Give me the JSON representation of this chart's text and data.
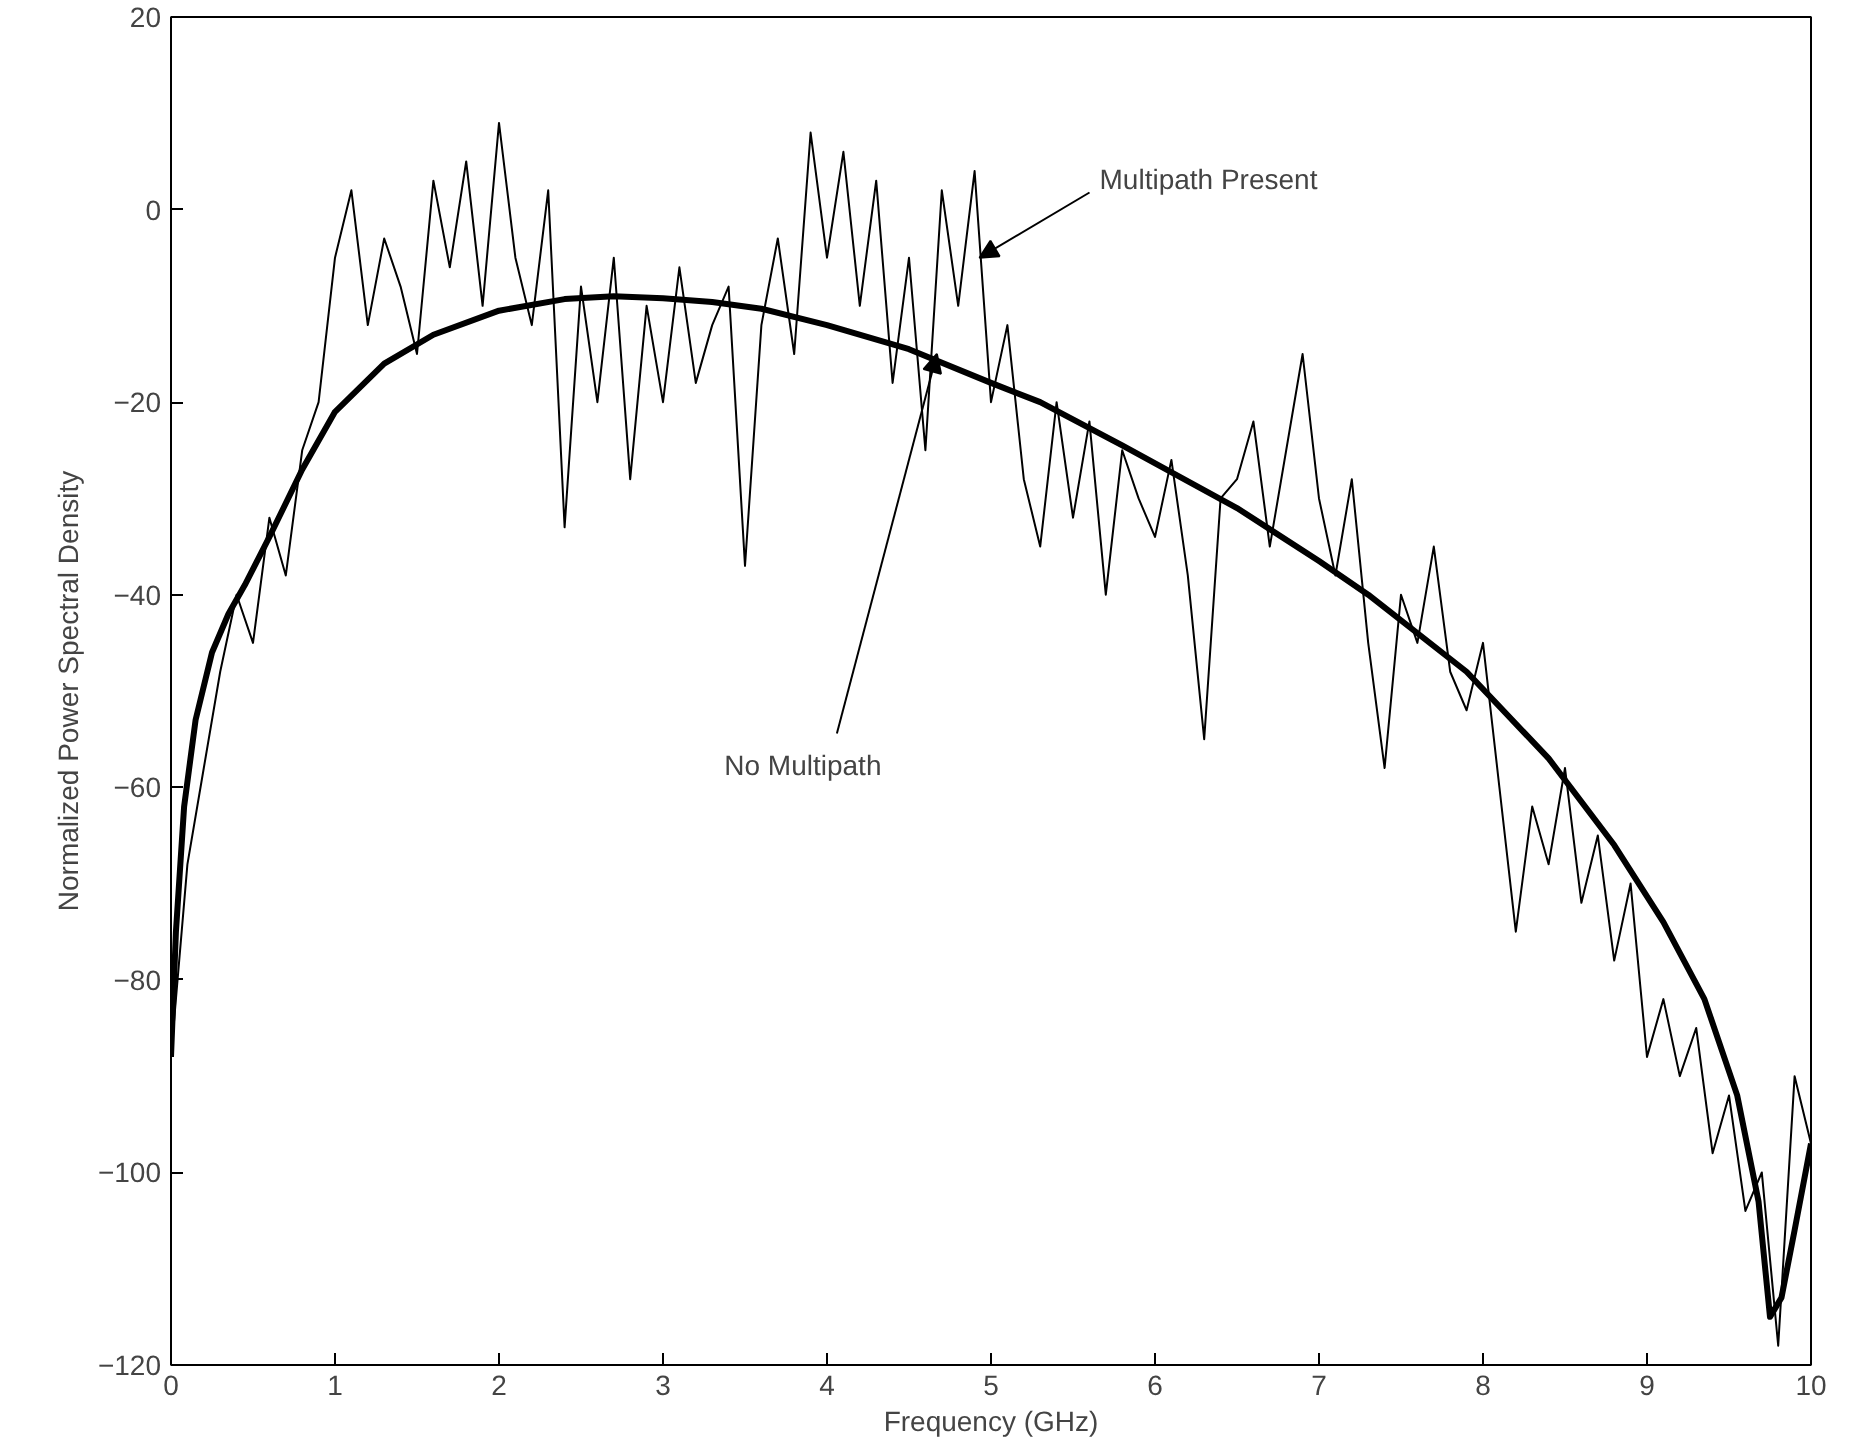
{
  "chart_data": {
    "type": "line",
    "xlabel": "Frequency (GHz)",
    "ylabel": "Normalized Power Spectral Density",
    "xlim": [
      0,
      10
    ],
    "ylim": [
      -120,
      20
    ],
    "xticks": [
      0,
      1,
      2,
      3,
      4,
      5,
      6,
      7,
      8,
      9,
      10
    ],
    "yticks": [
      -120,
      -100,
      -80,
      -60,
      -40,
      -20,
      0,
      20
    ],
    "series": [
      {
        "color": "#000000",
        "line_style": "solid",
        "x": [
          0,
          0.1,
          0.2,
          0.3,
          0.4,
          0.5,
          0.6,
          0.7,
          0.8,
          0.9,
          1.0,
          1.1,
          1.2,
          1.3,
          1.4,
          1.5,
          1.6,
          1.7,
          1.8,
          1.9,
          2.0,
          2.1,
          2.2,
          2.3,
          2.4,
          2.5,
          2.6,
          2.7,
          2.8,
          2.9,
          3.0,
          3.1,
          3.2,
          3.3,
          3.4,
          3.5,
          3.6,
          3.7,
          3.8,
          3.9,
          4.0,
          4.1,
          4.2,
          4.3,
          4.4,
          4.5,
          4.6,
          4.7,
          4.8,
          4.9,
          5.0,
          5.1,
          5.2,
          5.3,
          5.4,
          5.5,
          5.6,
          5.7,
          5.8,
          5.9,
          6.0,
          6.1,
          6.2,
          6.3,
          6.4,
          6.5,
          6.6,
          6.7,
          6.8,
          6.9,
          7.0,
          7.1,
          7.2,
          7.3,
          7.4,
          7.5,
          7.6,
          7.7,
          7.8,
          7.9,
          8.0,
          8.1,
          8.2,
          8.3,
          8.4,
          8.5,
          8.6,
          8.7,
          8.8,
          8.9,
          9.0,
          9.1,
          9.2,
          9.3,
          9.4,
          9.5,
          9.6,
          9.7,
          9.8,
          9.9,
          10.0
        ],
        "values": [
          -88,
          -68,
          -58,
          -48,
          -40,
          -45,
          -32,
          -38,
          -25,
          -20,
          -5,
          2,
          -12,
          -3,
          -8,
          -15,
          3,
          -6,
          5,
          -10,
          9,
          -5,
          -12,
          2,
          -33,
          -8,
          -20,
          -5,
          -28,
          -10,
          -20,
          -6,
          -18,
          -12,
          -8,
          -37,
          -12,
          -3,
          -15,
          8,
          -5,
          6,
          -10,
          3,
          -18,
          -5,
          -25,
          2,
          -10,
          4,
          -20,
          -12,
          -28,
          -35,
          -20,
          -32,
          -22,
          -40,
          -25,
          -30,
          -34,
          -26,
          -38,
          -55,
          -30,
          -28,
          -22,
          -35,
          -25,
          -15,
          -30,
          -38,
          -28,
          -45,
          -58,
          -40,
          -45,
          -35,
          -48,
          -52,
          -45,
          -60,
          -75,
          -62,
          -68,
          -58,
          -72,
          -65,
          -78,
          -70,
          -88,
          -82,
          -90,
          -85,
          -98,
          -92,
          -104,
          -100,
          -118,
          -90,
          -97
        ]
      },
      {
        "color": "#000000",
        "line_style": "solid",
        "x": [
          0,
          0.03,
          0.08,
          0.15,
          0.25,
          0.35,
          0.45,
          0.6,
          0.8,
          1.0,
          1.3,
          1.6,
          2.0,
          2.4,
          2.7,
          3.0,
          3.3,
          3.6,
          4.0,
          4.5,
          5.0,
          5.3,
          5.8,
          6.5,
          7.0,
          7.3,
          7.9,
          8.4,
          8.8,
          9.1,
          9.35,
          9.55,
          9.68,
          9.75,
          9.82,
          9.9,
          10.0
        ],
        "values": [
          -88,
          -75,
          -62,
          -53,
          -46,
          -42,
          -39,
          -34,
          -27,
          -21,
          -16,
          -13,
          -10.5,
          -9.3,
          -9,
          -9.2,
          -9.6,
          -10.3,
          -12,
          -14.5,
          -18,
          -20,
          -24.5,
          -31,
          -36.5,
          -40,
          -48,
          -57,
          -66,
          -74,
          -82,
          -92,
          -103,
          -115,
          -113,
          -106,
          -97
        ]
      }
    ],
    "annotations": [
      {
        "text": "Multipath Present",
        "x": 4.93,
        "y": -5
      },
      {
        "text": "No Multipath",
        "x": 4.67,
        "y": -15
      }
    ]
  }
}
